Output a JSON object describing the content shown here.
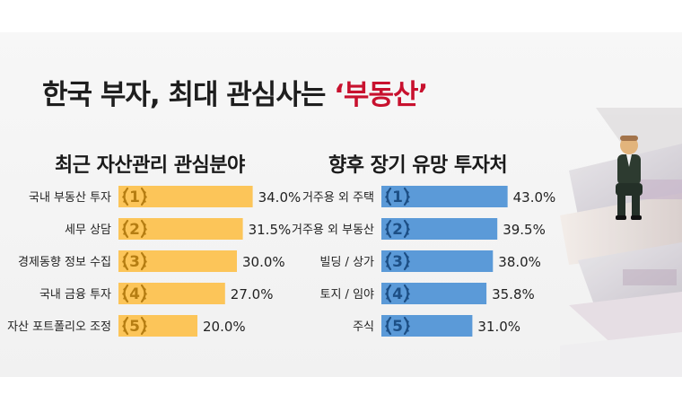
{
  "title": {
    "prefix": "한국 부자, 최대 관심사는 ",
    "highlight": "‘부동산’"
  },
  "chart_data": [
    {
      "type": "bar",
      "title": "최근 자산관리 관심분야",
      "categories": [
        "국내 부동산 투자",
        "세무 상담",
        "경제동향 정보 수집",
        "국내 금융 투자",
        "자산 포트폴리오 조정"
      ],
      "ranks": [
        "1",
        "2",
        "3",
        "4",
        "5"
      ],
      "values": [
        34.0,
        31.5,
        30.0,
        27.0,
        20.0
      ],
      "value_labels": [
        "34.0%",
        "31.5%",
        "30.0%",
        "27.0%",
        "20.0%"
      ],
      "xlim": [
        0,
        40
      ],
      "color": "#fcc559",
      "rank_color": "#b57d12"
    },
    {
      "type": "bar",
      "title": "향후 장기 유망 투자처",
      "categories": [
        "거주용 외 주택",
        "거주용 외 부동산",
        "빌딩 / 상가",
        "토지 / 임야",
        "주식"
      ],
      "ranks": [
        "1",
        "2",
        "3",
        "4",
        "5"
      ],
      "values": [
        43.0,
        39.5,
        38.0,
        35.8,
        31.0
      ],
      "value_labels": [
        "43.0%",
        "39.5%",
        "38.0%",
        "35.8%",
        "31.0%"
      ],
      "xlim": [
        0,
        48
      ],
      "color": "#5b9ad8",
      "rank_color": "#1d4f85"
    }
  ],
  "colors": {
    "title_highlight": "#c8112e"
  },
  "decoration": {
    "icon": "businessman-on-money-stack-icon"
  }
}
